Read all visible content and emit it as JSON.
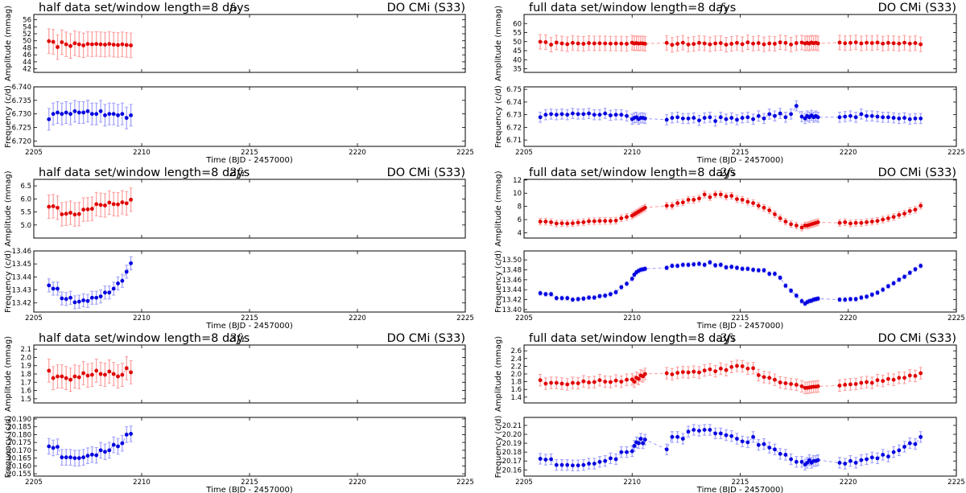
{
  "chart_data": {
    "type": "scatter",
    "xlabel": "Time (BJD - 2457000)",
    "xlim": [
      2205,
      2225
    ],
    "xticks": [
      2205,
      2210,
      2215,
      2220,
      2225
    ],
    "x_half": [
      2205.7,
      2205.9,
      2206.1,
      2206.3,
      2206.5,
      2206.7,
      2206.9,
      2207.1,
      2207.3,
      2207.5,
      2207.7,
      2207.9,
      2208.1,
      2208.3,
      2208.5,
      2208.7,
      2208.9,
      2209.1,
      2209.3,
      2209.5
    ],
    "x_full": [
      2205.75,
      2206.0,
      2206.25,
      2206.5,
      2206.75,
      2207.0,
      2207.25,
      2207.5,
      2207.75,
      2208.0,
      2208.25,
      2208.5,
      2208.75,
      2209.0,
      2209.25,
      2209.5,
      2209.75,
      2210.0,
      2210.1,
      2210.2,
      2210.3,
      2210.4,
      2210.5,
      2210.6,
      2211.6,
      2211.85,
      2212.1,
      2212.35,
      2212.6,
      2212.85,
      2213.1,
      2213.35,
      2213.6,
      2213.85,
      2214.1,
      2214.35,
      2214.6,
      2214.85,
      2215.1,
      2215.35,
      2215.6,
      2215.85,
      2216.1,
      2216.35,
      2216.6,
      2216.85,
      2217.1,
      2217.35,
      2217.6,
      2217.85,
      2218.0,
      2218.1,
      2218.2,
      2218.3,
      2218.4,
      2218.5,
      2218.6,
      2219.6,
      2219.85,
      2220.1,
      2220.35,
      2220.6,
      2220.85,
      2221.1,
      2221.35,
      2221.6,
      2221.85,
      2222.1,
      2222.35,
      2222.6,
      2222.85,
      2223.1,
      2223.35
    ],
    "rows": [
      {
        "harmonic": "f₁",
        "star": "DO CMi (S33)"
      },
      {
        "harmonic": "2f₁",
        "star": "DO CMi (S33)"
      },
      {
        "harmonic": "3f₁",
        "star": "DO CMi (S33)"
      }
    ],
    "columns": [
      {
        "title": "half data set/window length=8 days",
        "x_ref": "x_half"
      },
      {
        "title": "full data set/window length=8 days",
        "x_ref": "x_full"
      }
    ],
    "colors": {
      "amp": "#e00000",
      "amp_err": "#ff9c9c",
      "freq": "#0000e0",
      "freq_err": "#9c9cff"
    },
    "panels": [
      {
        "col": 0,
        "row": 0,
        "kind": "amp",
        "ylabel": "Amplitude (mmag)",
        "ylim": [
          41,
          57.5
        ],
        "yticks": [
          "42",
          "44",
          "46",
          "48",
          "50",
          "52",
          "54",
          "56"
        ],
        "err": 3.5,
        "y": [
          49.9,
          49.7,
          48.2,
          49.6,
          49.0,
          48.5,
          49.3,
          49.0,
          48.7,
          49.1,
          49.0,
          49.1,
          49.0,
          48.9,
          49.1,
          48.9,
          48.8,
          49.0,
          48.8,
          48.7
        ]
      },
      {
        "col": 0,
        "row": 0,
        "kind": "freq",
        "ylabel": "Frequency (c/d)",
        "ylim": [
          6.718,
          6.74
        ],
        "yticks": [
          "6.720",
          "6.725",
          "6.730",
          "6.735",
          "6.740"
        ],
        "err": 0.004,
        "y": [
          6.728,
          6.73,
          6.7305,
          6.73,
          6.7305,
          6.73,
          6.731,
          6.7305,
          6.7305,
          6.731,
          6.73,
          6.73,
          6.731,
          6.7295,
          6.73,
          6.73,
          6.7295,
          6.73,
          6.7285,
          6.7295
        ]
      },
      {
        "col": 0,
        "row": 1,
        "kind": "amp",
        "ylabel": "Amplitude (mmag)",
        "ylim": [
          4.5,
          6.75
        ],
        "yticks": [
          "5.0",
          "5.5",
          "6.0",
          "6.5"
        ],
        "err": 0.45,
        "y": [
          5.7,
          5.72,
          5.66,
          5.41,
          5.43,
          5.47,
          5.4,
          5.42,
          5.59,
          5.6,
          5.62,
          5.8,
          5.77,
          5.75,
          5.86,
          5.8,
          5.79,
          5.87,
          5.83,
          5.97
        ]
      },
      {
        "col": 0,
        "row": 1,
        "kind": "freq",
        "ylabel": "Frequency (c/d)",
        "ylim": [
          13.413,
          13.46
        ],
        "yticks": [
          "13.42",
          "13.43",
          "13.44",
          "13.45",
          "13.46"
        ],
        "err": 0.005,
        "y": [
          13.4335,
          13.431,
          13.431,
          13.4235,
          13.423,
          13.424,
          13.4205,
          13.421,
          13.422,
          13.4215,
          13.424,
          13.424,
          13.425,
          13.428,
          13.428,
          13.431,
          13.435,
          13.437,
          13.444,
          13.4505
        ]
      },
      {
        "col": 0,
        "row": 2,
        "kind": "amp",
        "ylabel": "Amplitude (mmag)",
        "ylim": [
          1.45,
          2.15
        ],
        "yticks": [
          "1.5",
          "1.6",
          "1.7",
          "1.8",
          "1.9",
          "2.0",
          "2.1"
        ],
        "err": 0.14,
        "y": [
          1.84,
          1.75,
          1.77,
          1.77,
          1.75,
          1.73,
          1.77,
          1.76,
          1.81,
          1.78,
          1.79,
          1.84,
          1.8,
          1.79,
          1.83,
          1.8,
          1.77,
          1.79,
          1.87,
          1.82
        ]
      },
      {
        "col": 0,
        "row": 2,
        "kind": "freq",
        "ylabel": "Frequency (c/d)",
        "ylim": [
          20.1535,
          20.191
        ],
        "yticks": [
          "20.155",
          "20.160",
          "20.165",
          "20.170",
          "20.175",
          "20.180",
          "20.185",
          "20.190"
        ],
        "err": 0.005,
        "y": [
          20.1725,
          20.1715,
          20.1722,
          20.1655,
          20.1655,
          20.1655,
          20.165,
          20.165,
          20.1655,
          20.1665,
          20.1672,
          20.1668,
          20.17,
          20.169,
          20.17,
          20.1735,
          20.1725,
          20.1745,
          20.18,
          20.1805
        ]
      },
      {
        "col": 1,
        "row": 0,
        "kind": "amp",
        "ylabel": "Amplitude (mmag)",
        "ylim": [
          33,
          65
        ],
        "yticks": [
          "35",
          "40",
          "45",
          "50",
          "55",
          "60"
        ],
        "err": 4,
        "y": [
          49.9,
          49.7,
          48.3,
          49.5,
          49.0,
          48.6,
          49.3,
          49.0,
          48.8,
          49.2,
          49.0,
          49.1,
          49.0,
          48.9,
          49.0,
          48.9,
          48.8,
          49.4,
          49.0,
          49.2,
          48.9,
          49.1,
          49.0,
          48.8,
          49.3,
          48.2,
          48.8,
          49.4,
          48.4,
          48.7,
          49.3,
          49.0,
          48.5,
          49.0,
          49.2,
          48.3,
          48.8,
          49.3,
          48.6,
          49.6,
          48.9,
          49.2,
          48.5,
          49.0,
          48.8,
          49.6,
          49.3,
          48.4,
          49.2,
          49.5,
          49.0,
          49.3,
          48.9,
          49.5,
          49.1,
          49.4,
          49.0,
          49.5,
          49.1,
          49.3,
          49.6,
          49.0,
          49.4,
          49.2,
          49.5,
          48.9,
          49.3,
          49.1,
          48.9,
          49.4,
          48.9,
          49.2,
          48.5
        ]
      },
      {
        "col": 1,
        "row": 0,
        "kind": "freq",
        "ylabel": "Frequency (c/d)",
        "ylim": [
          6.705,
          6.752
        ],
        "yticks": [
          "6.71",
          "6.72",
          "6.73",
          "6.74",
          "6.75"
        ],
        "err": 0.004,
        "y": [
          6.728,
          6.73,
          6.7305,
          6.73,
          6.7305,
          6.73,
          6.731,
          6.7305,
          6.7305,
          6.731,
          6.73,
          6.73,
          6.731,
          6.7295,
          6.73,
          6.73,
          6.729,
          6.7265,
          6.7275,
          6.728,
          6.7265,
          6.7275,
          6.7275,
          6.727,
          6.726,
          6.7275,
          6.728,
          6.727,
          6.727,
          6.7275,
          6.7255,
          6.7275,
          6.728,
          6.725,
          6.728,
          6.7265,
          6.7275,
          6.726,
          6.7275,
          6.728,
          6.7265,
          6.729,
          6.727,
          6.7305,
          6.729,
          6.731,
          6.728,
          6.7305,
          6.737,
          6.7285,
          6.727,
          6.729,
          6.728,
          6.7295,
          6.728,
          6.729,
          6.728,
          6.728,
          6.7285,
          6.729,
          6.728,
          6.7305,
          6.729,
          6.729,
          6.7285,
          6.728,
          6.728,
          6.7275,
          6.727,
          6.7275,
          6.7265,
          6.727,
          6.727
        ]
      },
      {
        "col": 1,
        "row": 1,
        "kind": "amp",
        "ylabel": "Amplitude (mmag)",
        "ylim": [
          3.2,
          12.1
        ],
        "yticks": [
          "4",
          "6",
          "8",
          "10",
          "12"
        ],
        "err": 0.5,
        "y": [
          5.7,
          5.7,
          5.6,
          5.4,
          5.45,
          5.4,
          5.45,
          5.55,
          5.6,
          5.75,
          5.75,
          5.8,
          5.8,
          5.8,
          5.85,
          6.2,
          6.4,
          6.6,
          6.8,
          7.0,
          7.2,
          7.4,
          7.6,
          7.8,
          8.1,
          8.1,
          8.5,
          8.6,
          9.0,
          9.0,
          9.2,
          9.8,
          9.4,
          9.8,
          9.8,
          9.5,
          9.6,
          9.1,
          9.0,
          8.7,
          8.5,
          8.1,
          7.8,
          7.4,
          6.8,
          6.2,
          5.7,
          5.3,
          5.1,
          4.8,
          5.1,
          5.1,
          5.2,
          5.3,
          5.4,
          5.5,
          5.6,
          5.5,
          5.6,
          5.4,
          5.5,
          5.5,
          5.6,
          5.7,
          5.8,
          6.0,
          6.2,
          6.4,
          6.7,
          6.9,
          7.3,
          7.5,
          8.1
        ]
      },
      {
        "col": 1,
        "row": 1,
        "kind": "freq",
        "ylabel": "Frequency (c/d)",
        "ylim": [
          13.395,
          13.518
        ],
        "yticks": [
          "13.40",
          "13.42",
          "13.44",
          "13.46",
          "13.48",
          "13.50"
        ],
        "err": 0.004,
        "y": [
          13.433,
          13.431,
          13.431,
          13.423,
          13.423,
          13.423,
          13.42,
          13.421,
          13.422,
          13.424,
          13.424,
          13.427,
          13.428,
          13.431,
          13.435,
          13.445,
          13.452,
          13.462,
          13.47,
          13.475,
          13.478,
          13.48,
          13.481,
          13.482,
          13.484,
          13.488,
          13.488,
          13.49,
          13.49,
          13.491,
          13.492,
          13.49,
          13.495,
          13.489,
          13.49,
          13.485,
          13.486,
          13.484,
          13.482,
          13.482,
          13.48,
          13.479,
          13.479,
          13.472,
          13.472,
          13.464,
          13.448,
          13.438,
          13.428,
          13.417,
          13.412,
          13.415,
          13.417,
          13.418,
          13.42,
          13.421,
          13.422,
          13.42,
          13.42,
          13.421,
          13.421,
          13.424,
          13.426,
          13.43,
          13.434,
          13.44,
          13.447,
          13.453,
          13.46,
          13.466,
          13.474,
          13.481,
          13.488
        ]
      },
      {
        "col": 1,
        "row": 2,
        "kind": "amp",
        "ylabel": "Amplitude (mmag)",
        "ylim": [
          1.25,
          2.75
        ],
        "yticks": [
          "1.4",
          "1.6",
          "1.8",
          "2.0",
          "2.2",
          "2.4",
          "2.6"
        ],
        "err": 0.15,
        "y": [
          1.84,
          1.75,
          1.77,
          1.77,
          1.75,
          1.73,
          1.77,
          1.76,
          1.81,
          1.78,
          1.79,
          1.84,
          1.8,
          1.79,
          1.83,
          1.8,
          1.85,
          1.86,
          1.8,
          1.9,
          1.87,
          1.96,
          1.94,
          2.0,
          2.02,
          1.99,
          2.03,
          2.05,
          2.04,
          2.06,
          2.04,
          2.09,
          2.12,
          2.07,
          2.14,
          2.1,
          2.18,
          2.21,
          2.2,
          2.14,
          2.15,
          1.97,
          1.92,
          1.9,
          1.85,
          1.78,
          1.76,
          1.74,
          1.72,
          1.68,
          1.64,
          1.64,
          1.65,
          1.66,
          1.67,
          1.67,
          1.68,
          1.7,
          1.72,
          1.73,
          1.74,
          1.77,
          1.79,
          1.77,
          1.84,
          1.82,
          1.87,
          1.85,
          1.9,
          1.9,
          1.96,
          1.95,
          2.02
        ]
      },
      {
        "col": 1,
        "row": 2,
        "kind": "freq",
        "ylabel": "Frequency (c/d)",
        "ylim": [
          20.153,
          20.219
        ],
        "yticks": [
          "20.16",
          "20.17",
          "20.18",
          "20.19",
          "20.20",
          "20.21"
        ],
        "err": 0.006,
        "y": [
          20.1725,
          20.1715,
          20.172,
          20.1655,
          20.1655,
          20.1655,
          20.165,
          20.165,
          20.1655,
          20.167,
          20.167,
          20.169,
          20.17,
          20.173,
          20.172,
          20.18,
          20.18,
          20.181,
          20.187,
          20.191,
          20.19,
          20.195,
          20.19,
          20.194,
          20.183,
          20.197,
          20.197,
          20.195,
          20.203,
          20.205,
          20.204,
          20.205,
          20.205,
          20.201,
          20.201,
          20.199,
          20.198,
          20.195,
          20.192,
          20.191,
          20.197,
          20.188,
          20.189,
          20.185,
          20.183,
          20.178,
          20.177,
          20.172,
          20.169,
          20.169,
          20.166,
          20.168,
          20.171,
          20.168,
          20.17,
          20.17,
          20.171,
          20.168,
          20.167,
          20.17,
          20.168,
          20.171,
          20.172,
          20.174,
          20.173,
          20.177,
          20.175,
          20.18,
          20.182,
          20.186,
          20.19,
          20.189,
          20.197
        ]
      }
    ]
  }
}
